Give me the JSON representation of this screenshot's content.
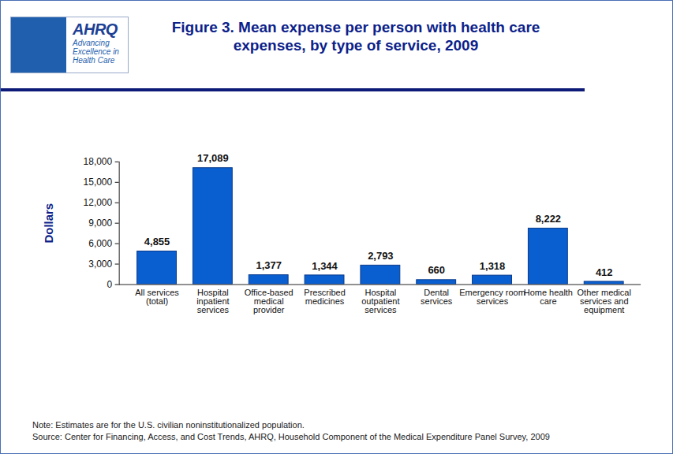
{
  "chart_data": {
    "type": "bar",
    "title": "Figure 3. Mean expense per person with health care expenses, by type of service, 2009",
    "y_label": "Dollars",
    "categories": [
      "All services (total)",
      "Hospital inpatient services",
      "Office-based medical provider",
      "Prescribed medicines",
      "Hospital outpatient services",
      "Dental services",
      "Emergency room services",
      "Home health care",
      "Other medical services and equipment"
    ],
    "values": [
      4855,
      17089,
      1377,
      1344,
      2793,
      660,
      1318,
      8222,
      412
    ],
    "value_labels": [
      "4,855",
      "17,089",
      "1,377",
      "1,344",
      "2,793",
      "660",
      "1,318",
      "8,222",
      "412"
    ],
    "data_labels": true,
    "color": "#0a5fd0",
    "ylim": [
      0,
      18000
    ],
    "yticks": [
      0,
      {
        "value": 3000,
        "label": "3,000"
      },
      {
        "value": 6000,
        "label": "6,000"
      },
      {
        "value": 9000,
        "label": "9,000"
      },
      {
        "value": 12000,
        "label": "12,000"
      },
      {
        "value": 15000,
        "label": "15,000"
      },
      {
        "value": 18000,
        "label": "18,000"
      }
    ],
    "grid": false,
    "annotations": [
      "AHRQ",
      "Advancing Excellence in Health Care",
      "Note: Estimates are for the U.S. civilian noninstitutionalized population.",
      "Source: Center for Financing, Access, and Cost Trends, AHRQ, Household Component of the Medical Expenditure Panel Survey,  2009"
    ]
  }
}
